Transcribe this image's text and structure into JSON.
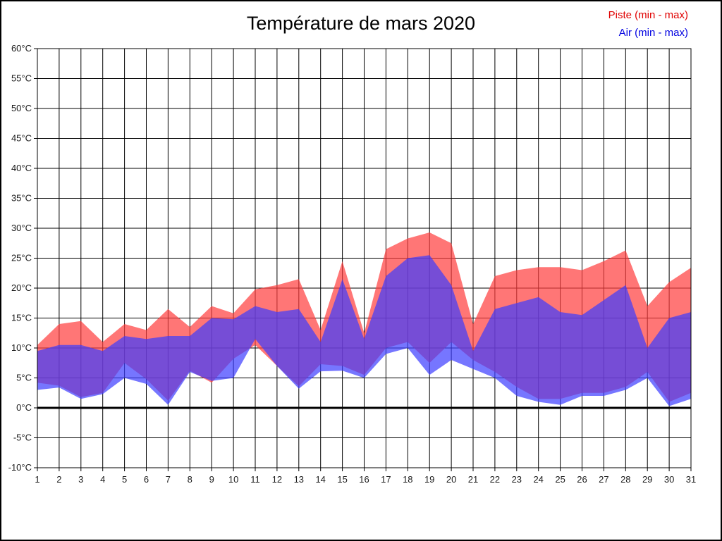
{
  "title": "Température de mars 2020",
  "legend": [
    {
      "label": "Piste (min - max)",
      "color": "#e00000"
    },
    {
      "label": "Air (min - max)",
      "color": "#0000e0"
    }
  ],
  "colors": {
    "piste_fill": "#ff3c3c",
    "air_fill": "#3c3cff",
    "grid": "#000000",
    "axis_text": "#1a1a1a"
  },
  "chart_data": {
    "type": "area",
    "title": "Température de mars 2020",
    "xlabel": "",
    "ylabel": "",
    "y_unit": "°C",
    "ylim": [
      -10,
      60
    ],
    "y_tick_step": 5,
    "grid": true,
    "zero_line_bold": true,
    "legend_position": "top-right",
    "days": [
      1,
      2,
      3,
      4,
      5,
      6,
      7,
      8,
      9,
      10,
      11,
      12,
      13,
      14,
      15,
      16,
      17,
      18,
      19,
      20,
      21,
      22,
      23,
      24,
      25,
      26,
      27,
      28,
      29,
      30,
      31
    ],
    "series": [
      {
        "name": "Piste (min - max)",
        "role": "min-max-band",
        "fill": "#ff3c3c",
        "fill_opacity": 0.7,
        "min": [
          4.2,
          3.7,
          1.8,
          2.5,
          7.5,
          4.8,
          1.2,
          6.2,
          4.2,
          8.2,
          10.5,
          7,
          3.6,
          7.3,
          7,
          5.5,
          10,
          11,
          7.5,
          11,
          8,
          6,
          3.5,
          1.5,
          1.5,
          2.5,
          2.5,
          3.5,
          6,
          1,
          2.5
        ],
        "max": [
          10.5,
          14,
          14.5,
          11,
          14,
          13,
          16.5,
          13.5,
          17,
          15.8,
          19.8,
          20.5,
          21.5,
          13,
          24.5,
          12.5,
          26.5,
          28.3,
          29.3,
          27.5,
          14,
          22,
          23,
          23.5,
          23.5,
          23,
          24.5,
          26.3,
          17,
          21,
          23.4
        ]
      },
      {
        "name": "Air (min - max)",
        "role": "min-max-band",
        "fill": "#3c3cff",
        "fill_opacity": 0.7,
        "min": [
          3,
          3.4,
          1.5,
          2.3,
          5,
          4,
          0.5,
          6,
          4.5,
          5,
          11.5,
          7,
          3.2,
          6.1,
          6.2,
          5,
          9,
          10,
          5.5,
          8,
          6.5,
          5,
          2,
          1,
          0.5,
          2,
          2,
          3,
          5,
          0.3,
          1.5
        ],
        "max": [
          9.5,
          10.5,
          10.5,
          9.5,
          12,
          11.5,
          12,
          12,
          15,
          14.8,
          17,
          16,
          16.5,
          11,
          21.5,
          11.5,
          22,
          25,
          25.5,
          20.5,
          9.5,
          16.5,
          17.5,
          18.5,
          16,
          15.5,
          18,
          20.5,
          10,
          15,
          16
        ]
      }
    ]
  }
}
